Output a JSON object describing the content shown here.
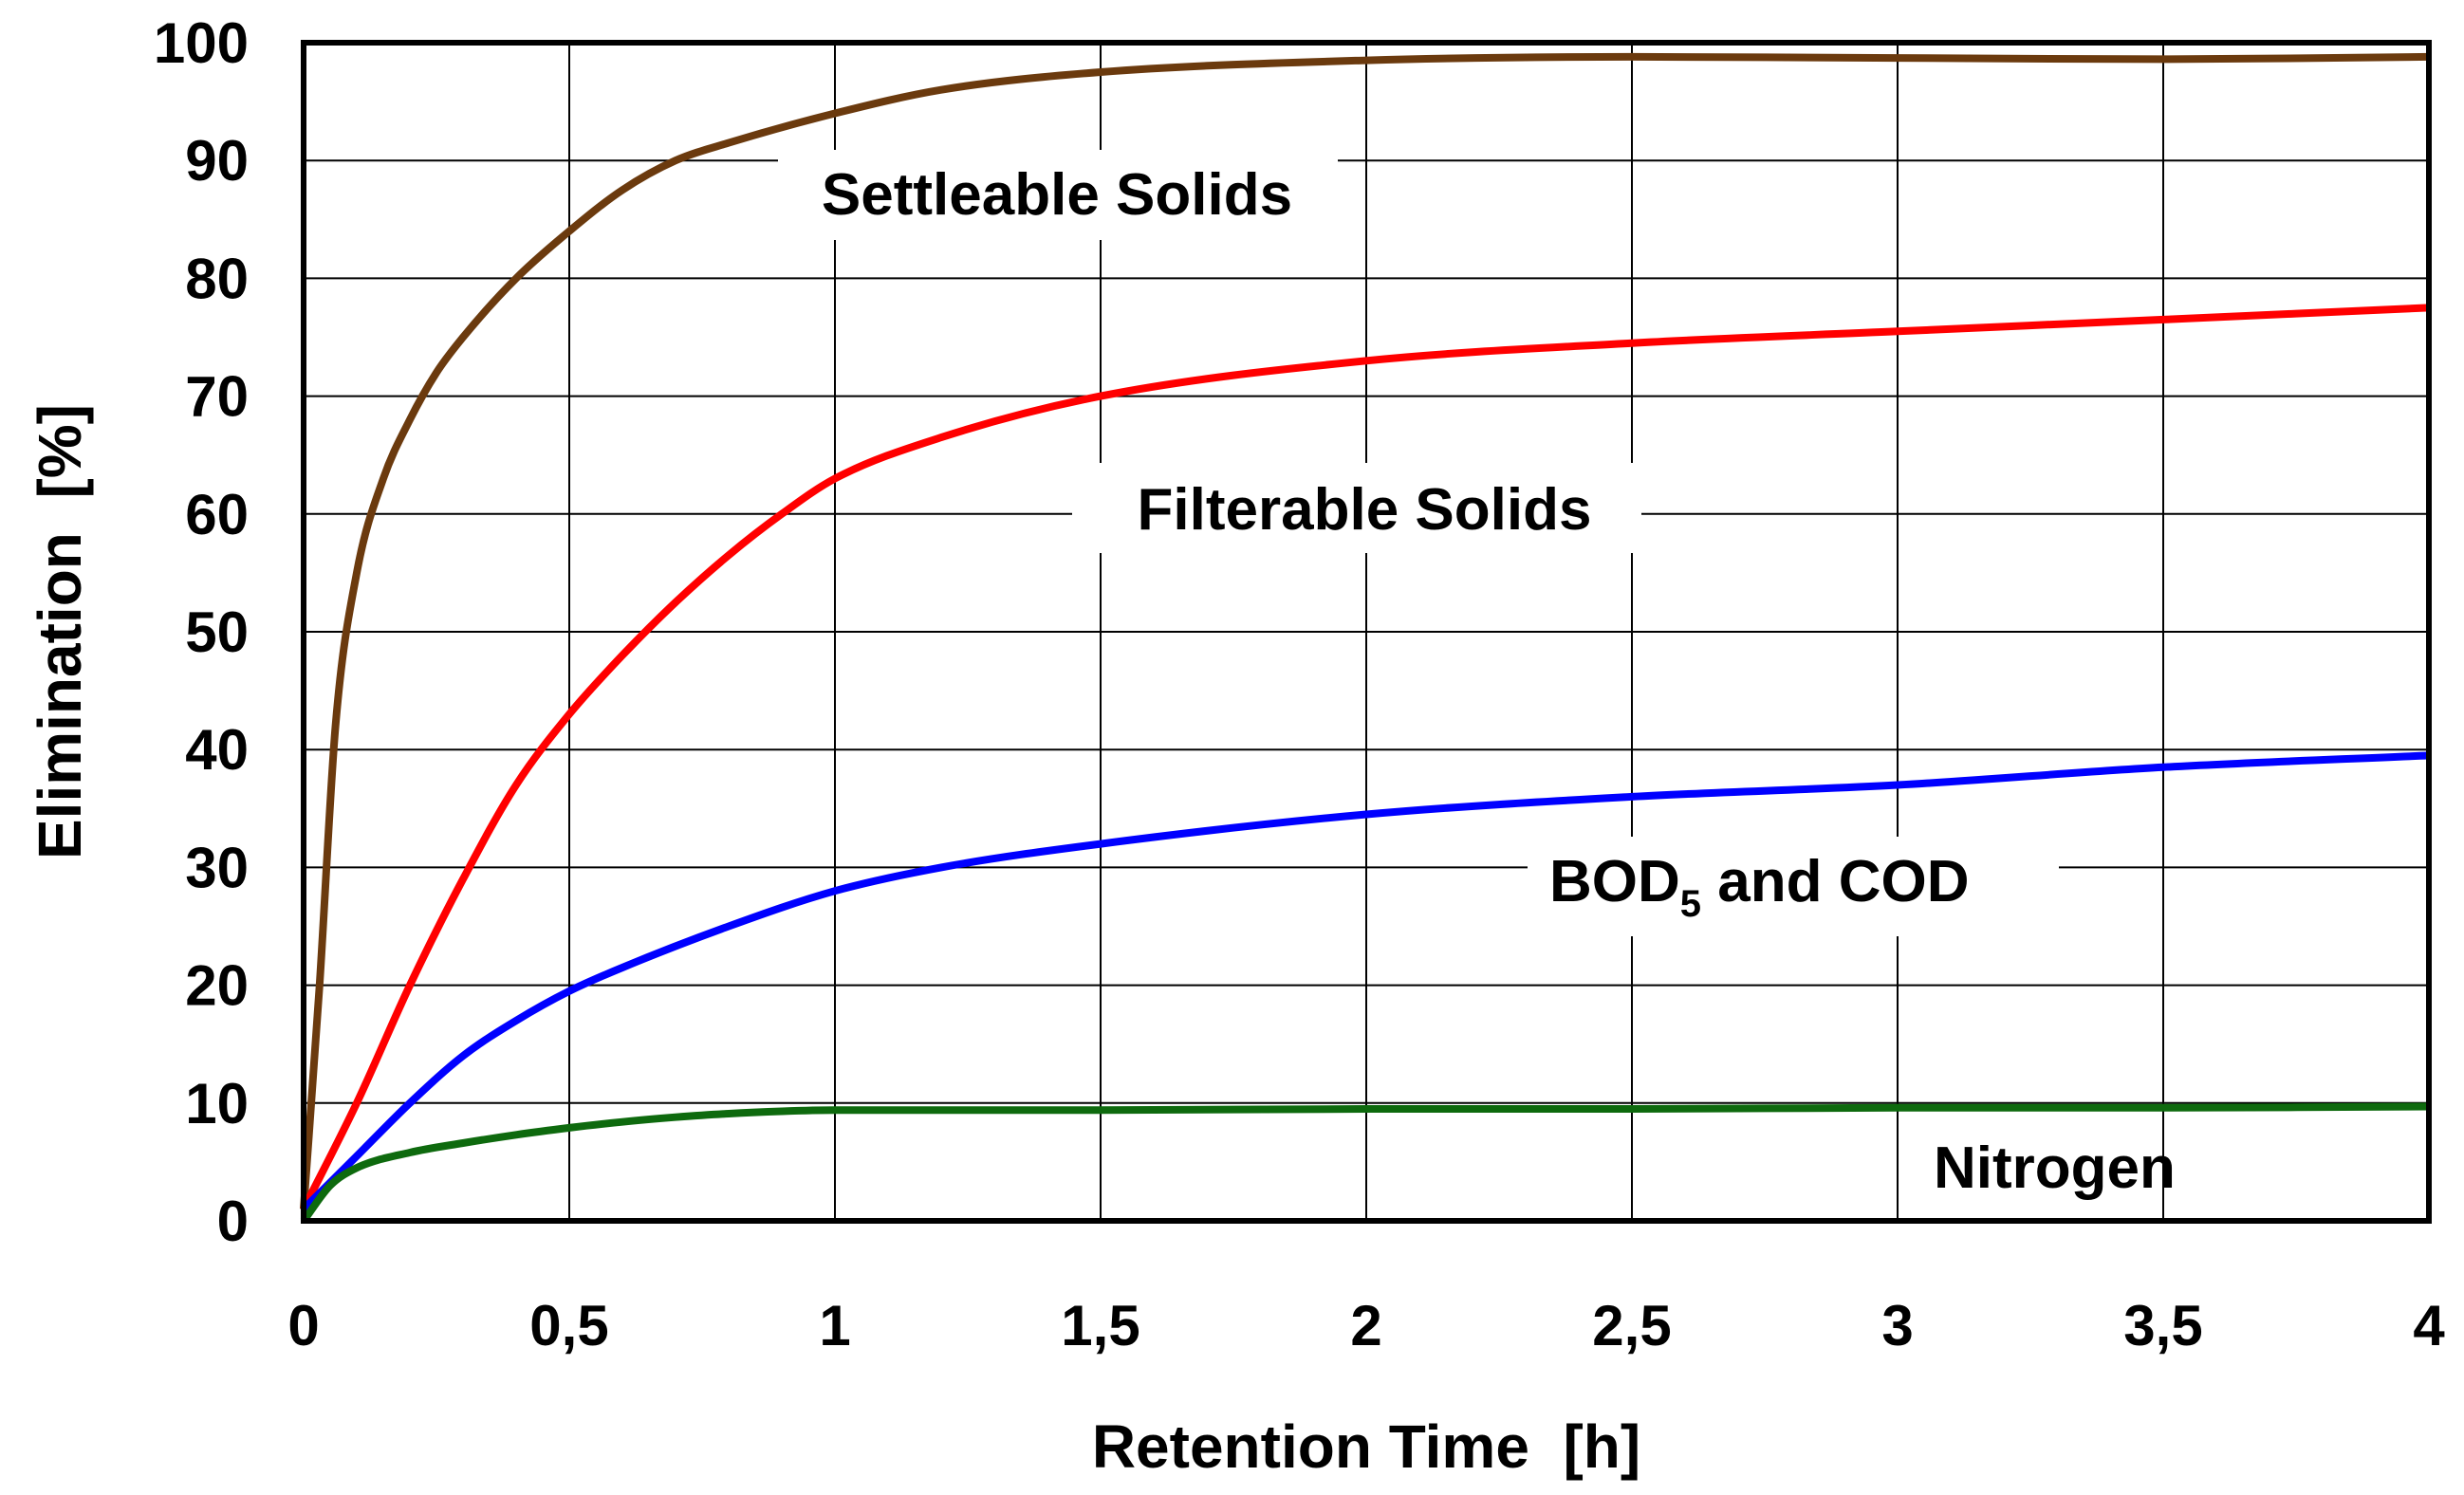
{
  "chart_data": {
    "type": "line",
    "xlabel": "Retention Time  [h]",
    "ylabel": "Elimination  [%]",
    "xlim": [
      0,
      4
    ],
    "ylim": [
      0,
      100
    ],
    "grid": true,
    "x_ticks": [
      {
        "value": 0,
        "label": "0"
      },
      {
        "value": 0.5,
        "label": "0,5"
      },
      {
        "value": 1,
        "label": "1"
      },
      {
        "value": 1.5,
        "label": "1,5"
      },
      {
        "value": 2,
        "label": "2"
      },
      {
        "value": 2.5,
        "label": "2,5"
      },
      {
        "value": 3,
        "label": "3"
      },
      {
        "value": 3.5,
        "label": "3,5"
      },
      {
        "value": 4,
        "label": "4"
      }
    ],
    "y_ticks": [
      {
        "value": 0,
        "label": "0"
      },
      {
        "value": 10,
        "label": "10"
      },
      {
        "value": 20,
        "label": "20"
      },
      {
        "value": 30,
        "label": "30"
      },
      {
        "value": 40,
        "label": "40"
      },
      {
        "value": 50,
        "label": "50"
      },
      {
        "value": 60,
        "label": "60"
      },
      {
        "value": 70,
        "label": "70"
      },
      {
        "value": 80,
        "label": "80"
      },
      {
        "value": 90,
        "label": "90"
      },
      {
        "value": 100,
        "label": "100"
      }
    ],
    "series": [
      {
        "key": "settleable",
        "name": "Settleable Solids",
        "color": "#6b3a0e",
        "x": [
          0,
          0.03,
          0.06,
          0.1,
          0.15,
          0.2,
          0.25,
          0.3,
          0.4,
          0.5,
          0.6,
          0.7,
          0.8,
          1.0,
          1.2,
          1.5,
          2.0,
          2.5,
          3.0,
          3.5,
          4.0
        ],
        "y": [
          1,
          20,
          42,
          55,
          63,
          68,
          72,
          75,
          80,
          84,
          87.5,
          90,
          91.5,
          94,
          96,
          97.5,
          98.5,
          98.8,
          98.7,
          98.6,
          98.8
        ]
      },
      {
        "key": "filterable",
        "name": "Filterable Solids",
        "color": "#ff0000",
        "x": [
          0,
          0.1,
          0.2,
          0.3,
          0.4,
          0.5,
          0.6,
          0.7,
          0.8,
          0.9,
          1.0,
          1.2,
          1.5,
          2.0,
          2.5,
          3.0,
          3.5,
          4.0
        ],
        "y": [
          1,
          10,
          20,
          29,
          37,
          43,
          48,
          52.5,
          56.5,
          60,
          63,
          66.5,
          70,
          73,
          74.5,
          75.5,
          76.5,
          77.5
        ]
      },
      {
        "key": "bod",
        "name": "BOD5 and COD",
        "color": "#0000ff",
        "x": [
          0,
          0.1,
          0.2,
          0.3,
          0.4,
          0.5,
          0.6,
          0.8,
          1.0,
          1.2,
          1.5,
          2.0,
          2.5,
          3.0,
          3.5,
          4.0
        ],
        "y": [
          1,
          5.5,
          10,
          14,
          17,
          19.5,
          21.5,
          25,
          28,
          30,
          32,
          34.5,
          36,
          37,
          38.5,
          39.5
        ]
      },
      {
        "key": "nitrogen",
        "name": "Nitrogen",
        "color": "#0e6a0e",
        "x": [
          0,
          0.05,
          0.1,
          0.2,
          0.3,
          0.4,
          0.5,
          0.6,
          0.7,
          0.8,
          0.9,
          1.0,
          1.5,
          2.0,
          2.5,
          3.0,
          3.5,
          4.0
        ],
        "y": [
          0,
          3,
          4.5,
          5.8,
          6.6,
          7.3,
          7.9,
          8.4,
          8.8,
          9.1,
          9.3,
          9.4,
          9.4,
          9.5,
          9.5,
          9.6,
          9.6,
          9.7
        ]
      }
    ],
    "annotations": [
      {
        "series": "settleable",
        "text": "Settleable Solids",
        "x": 1.41,
        "y": 87.2
      },
      {
        "series": "filterable",
        "text": "Filterable Solids",
        "x": 1.99,
        "y": 60.2
      },
      {
        "series": "bod",
        "text_main": "BOD",
        "text_sub": "5",
        "text_rest": " and COD",
        "x": 2.78,
        "y": 28.5
      },
      {
        "series": "nitrogen",
        "text": "Nitrogen",
        "x": 3.28,
        "y": 4.0
      }
    ]
  }
}
